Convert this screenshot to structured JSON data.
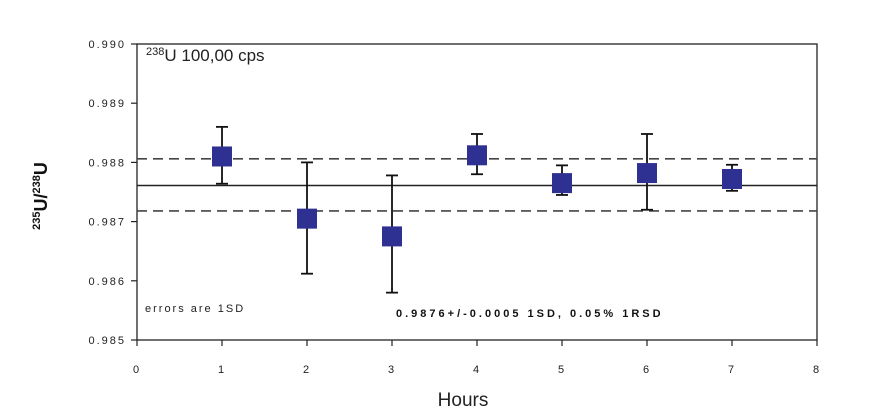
{
  "chart_data": {
    "type": "scatter",
    "x": [
      1,
      2,
      3,
      4,
      5,
      6,
      7
    ],
    "y": [
      0.9881,
      0.98705,
      0.98675,
      0.98812,
      0.98765,
      0.98782,
      0.98772
    ],
    "y_err_upper": [
      0.9886,
      0.988,
      0.98778,
      0.98848,
      0.98795,
      0.98848,
      0.98796
    ],
    "y_err_lower": [
      0.98764,
      0.98612,
      0.9858,
      0.9878,
      0.98745,
      0.9872,
      0.98752
    ],
    "xlim": [
      0,
      8
    ],
    "ylim": [
      0.985,
      0.99
    ],
    "x_ticks": [
      "0",
      "1",
      "2",
      "3",
      "4",
      "5",
      "6",
      "7",
      "8"
    ],
    "y_ticks": [
      "0.990",
      "0.989",
      "0.988",
      "0.987",
      "0.986",
      "0.985"
    ],
    "xlabel": "Hours",
    "ylabel_base1": "235",
    "ylabel_mid": "U/",
    "ylabel_base2": "238",
    "ylabel_end": "U",
    "inset_sup": "238",
    "inset_text": "U 100,00 cps",
    "note": "errors are 1SD",
    "summary": "0.9876+/-0.0005 1SD, 0.05% 1RSD",
    "mean_line": 0.98761,
    "sd_upper_line": 0.98806,
    "sd_lower_line": 0.98718,
    "marker_color": "#2e3192",
    "grid": false,
    "legend": "none"
  }
}
